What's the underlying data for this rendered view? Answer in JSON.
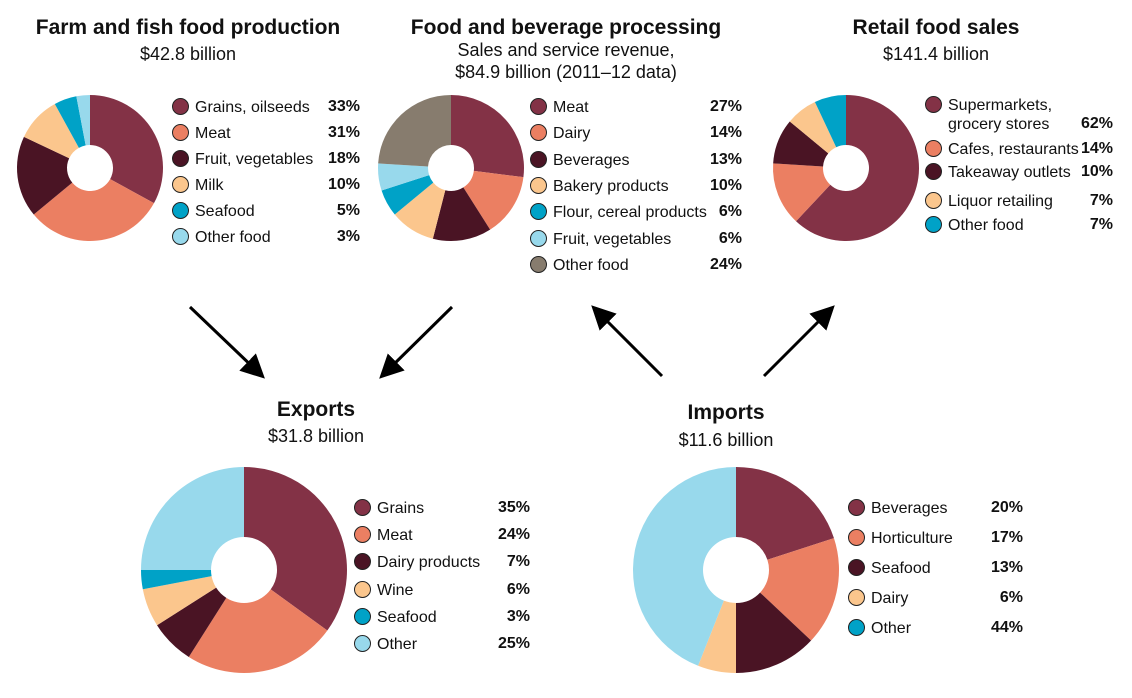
{
  "colors": {
    "maroon": "#833246",
    "salmon": "#eb7f62",
    "dark": "#4a1424",
    "peach": "#fbc68d",
    "teal": "#00a2c7",
    "lightblue": "#98d9ec",
    "gray": "#877c6e"
  },
  "chart_data": [
    {
      "id": "farm",
      "type": "pie",
      "title": "Farm and fish food production",
      "subtitle": [
        "$42.8 billion"
      ],
      "categories": [
        "Grains, oilseeds",
        "Meat",
        "Fruit, vegetables",
        "Milk",
        "Seafood",
        "Other food"
      ],
      "legend_lines": [
        [
          "Grains, oilseeds"
        ],
        [
          "Meat"
        ],
        [
          "Fruit, vegetables"
        ],
        [
          "Milk"
        ],
        [
          "Seafood"
        ],
        [
          "Other food"
        ]
      ],
      "values": [
        33,
        31,
        18,
        10,
        5,
        3
      ],
      "labels": [
        "33%",
        "31%",
        "18%",
        "10%",
        "5%",
        "3%"
      ],
      "colors": [
        "maroon",
        "salmon",
        "dark",
        "peach",
        "teal",
        "lightblue"
      ],
      "legend": "right"
    },
    {
      "id": "processing",
      "type": "pie",
      "title": "Food and beverage processing",
      "subtitle": [
        "Sales and service revenue,",
        "$84.9 billion (2011–12 data)"
      ],
      "categories": [
        "Meat",
        "Dairy",
        "Beverages",
        "Bakery products",
        "Flour, cereal products",
        "Fruit, vegetables",
        "Other food"
      ],
      "legend_lines": [
        [
          "Meat"
        ],
        [
          "Dairy"
        ],
        [
          "Beverages"
        ],
        [
          "Bakery products"
        ],
        [
          "Flour, cereal products"
        ],
        [
          "Fruit, vegetables"
        ],
        [
          "Other food"
        ]
      ],
      "values": [
        27,
        14,
        13,
        10,
        6,
        6,
        24
      ],
      "labels": [
        "27%",
        "14%",
        "13%",
        "10%",
        "6%",
        "6%",
        "24%"
      ],
      "colors": [
        "maroon",
        "salmon",
        "dark",
        "peach",
        "teal",
        "lightblue",
        "gray"
      ],
      "legend": "right"
    },
    {
      "id": "retail",
      "type": "pie",
      "title": "Retail food sales",
      "subtitle": [
        "$141.4 billion"
      ],
      "categories": [
        "Supermarkets, grocery stores",
        "Cafes, restaurants",
        "Takeaway outlets",
        "Liquor retailing",
        "Other food"
      ],
      "legend_lines": [
        [
          "Supermarkets,",
          "grocery stores"
        ],
        [
          "Cafes, restaurants"
        ],
        [
          "Takeaway outlets"
        ],
        [
          "Liquor retailing"
        ],
        [
          "Other food"
        ]
      ],
      "values": [
        62,
        14,
        10,
        7,
        7
      ],
      "labels": [
        "62%",
        "14%",
        "10%",
        "7%",
        "7%"
      ],
      "colors": [
        "maroon",
        "salmon",
        "dark",
        "peach",
        "teal"
      ],
      "legend": "right"
    },
    {
      "id": "exports",
      "type": "pie",
      "title": "Exports",
      "subtitle": [
        "$31.8 billion"
      ],
      "categories": [
        "Grains",
        "Meat",
        "Dairy products",
        "Wine",
        "Seafood",
        "Other"
      ],
      "legend_lines": [
        [
          "Grains"
        ],
        [
          "Meat"
        ],
        [
          "Dairy products"
        ],
        [
          "Wine"
        ],
        [
          "Seafood"
        ],
        [
          "Other"
        ]
      ],
      "values": [
        35,
        24,
        7,
        6,
        3,
        25
      ],
      "labels": [
        "35%",
        "24%",
        "7%",
        "6%",
        "3%",
        "25%"
      ],
      "colors": [
        "maroon",
        "salmon",
        "dark",
        "peach",
        "teal",
        "lightblue"
      ],
      "legend": "right"
    },
    {
      "id": "imports",
      "type": "pie",
      "title": "Imports",
      "subtitle": [
        "$11.6 billion"
      ],
      "categories": [
        "Beverages",
        "Horticulture",
        "Seafood",
        "Dairy",
        "Other"
      ],
      "legend_lines": [
        [
          "Beverages"
        ],
        [
          "Horticulture"
        ],
        [
          "Seafood"
        ],
        [
          "Dairy"
        ],
        [
          "Other"
        ]
      ],
      "values": [
        20,
        17,
        13,
        6,
        44
      ],
      "labels": [
        "20%",
        "17%",
        "13%",
        "6%",
        "44%"
      ],
      "colors": [
        "maroon",
        "salmon",
        "dark",
        "peach",
        "teal"
      ],
      "slice_colors": [
        "maroon",
        "salmon",
        "dark",
        "peach",
        "lightblue"
      ],
      "legend": "right"
    }
  ],
  "flows": [
    {
      "from": "Farm and fish food production",
      "to": "Exports"
    },
    {
      "from": "Food and beverage processing",
      "to": "Exports"
    },
    {
      "from": "Imports",
      "to": "Food and beverage processing"
    },
    {
      "from": "Imports",
      "to": "Retail food sales"
    }
  ]
}
